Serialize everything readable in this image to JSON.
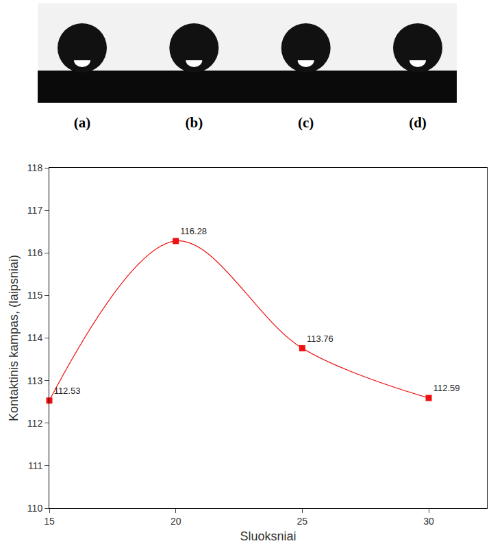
{
  "panels": {
    "labels": [
      "(a)",
      "(b)",
      "(c)",
      "(d)"
    ]
  },
  "chart_data": {
    "type": "line",
    "x_label": "Sluoksniai",
    "y_label": "Kontaktinis kampas, (laipsniai)",
    "x": [
      15,
      20,
      25,
      30
    ],
    "values": [
      112.53,
      116.28,
      113.76,
      112.59
    ],
    "color": "#ee1111",
    "marker": "square",
    "line_style": "solid",
    "data_labels": true,
    "xlim": [
      15,
      32.3
    ],
    "xticks": [
      15,
      20,
      25,
      30
    ],
    "ylim": [
      110,
      118
    ],
    "yticks": [
      110,
      111,
      112,
      113,
      114,
      115,
      116,
      117,
      118
    ],
    "grid": false
  }
}
